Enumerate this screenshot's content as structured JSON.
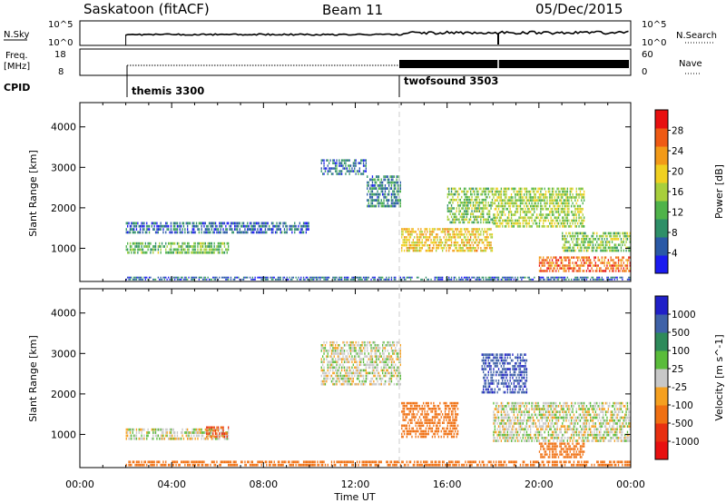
{
  "header": {
    "station": "Saskatoon (fitACF)",
    "beam": "Beam 11",
    "date": "05/Dec/2015"
  },
  "top_panels": {
    "nsky_label": "N.Sky",
    "nsky_ticks": [
      "10^5",
      "10^0"
    ],
    "nsearch_label": "N.Search",
    "nsearch_ticks": [
      "10^5",
      "10^0"
    ],
    "freq_label": "Freq.",
    "freq_unit": "[MHz]",
    "freq_ticks": [
      "18",
      "8"
    ],
    "nave_label": "Nave",
    "nave_ticks": [
      "60",
      "0"
    ],
    "cpid_label": "CPID",
    "cpid_programs": [
      {
        "name": "themis 3300",
        "start_hour": 2.0
      },
      {
        "name": "twofsound 3503",
        "start_hour": 14.0
      }
    ]
  },
  "x_axis": {
    "title": "Time UT",
    "ticks": [
      "00:00",
      "04:00",
      "08:00",
      "12:00",
      "16:00",
      "20:00",
      "00:00"
    ],
    "range_hours": [
      0,
      24
    ]
  },
  "chart_data": [
    {
      "type": "heatmap",
      "panel": "power",
      "ylabel": "Slant Range [km]",
      "y_ticks": [
        "1000",
        "2000",
        "3000",
        "4000"
      ],
      "ylim": [
        180,
        4600
      ],
      "colorbar": {
        "label": "Power [dB]",
        "ticks": [
          "4",
          "8",
          "12",
          "16",
          "20",
          "24",
          "28"
        ],
        "range": [
          0,
          32
        ],
        "colors": [
          "#1b1bf0",
          "#2a59a6",
          "#2e8f68",
          "#4fb34a",
          "#a8cf3c",
          "#f0d020",
          "#f29a18",
          "#ef5a14",
          "#e81010"
        ]
      },
      "regions": [
        {
          "t0": 2.0,
          "t1": 6.5,
          "r0": 850,
          "r1": 1150,
          "value": 13,
          "note": "band"
        },
        {
          "t0": 2.0,
          "t1": 10.0,
          "r0": 1350,
          "r1": 1650,
          "value": 6
        },
        {
          "t0": 2.0,
          "t1": 24.0,
          "r0": 200,
          "r1": 300,
          "value": 6
        },
        {
          "t0": 10.5,
          "t1": 12.5,
          "r0": 2800,
          "r1": 3200,
          "value": 7
        },
        {
          "t0": 12.5,
          "t1": 14.0,
          "r0": 2000,
          "r1": 2800,
          "value": 8
        },
        {
          "t0": 14.0,
          "t1": 18.0,
          "r0": 900,
          "r1": 1500,
          "value": 20
        },
        {
          "t0": 16.0,
          "t1": 18.0,
          "r0": 1600,
          "r1": 2500,
          "value": 14
        },
        {
          "t0": 18.0,
          "t1": 22.0,
          "r0": 1500,
          "r1": 2500,
          "value": 16
        },
        {
          "t0": 20.0,
          "t1": 24.0,
          "r0": 400,
          "r1": 800,
          "value": 26
        },
        {
          "t0": 21.0,
          "t1": 24.0,
          "r0": 900,
          "r1": 1400,
          "value": 14
        }
      ]
    },
    {
      "type": "heatmap",
      "panel": "velocity",
      "ylabel": "Slant Range [km]",
      "y_ticks": [
        "1000",
        "2000",
        "3000",
        "4000"
      ],
      "ylim": [
        180,
        4600
      ],
      "colorbar": {
        "label": "Velocity [m s^-1]",
        "ticks": [
          "1000",
          "500",
          "100",
          "25",
          "-25",
          "-100",
          "-500",
          "-1000"
        ],
        "colors": [
          "#2020c8",
          "#3f62a8",
          "#2e8a5a",
          "#5abc3a",
          "#c8c8c8",
          "#f5a020",
          "#f07012",
          "#e83010",
          "#e81010"
        ]
      },
      "regions": [
        {
          "t0": 2.0,
          "t1": 6.5,
          "r0": 850,
          "r1": 1150,
          "value": 0
        },
        {
          "t0": 2.0,
          "t1": 24.0,
          "r0": 200,
          "r1": 350,
          "value": -150
        },
        {
          "t0": 5.5,
          "t1": 6.5,
          "r0": 900,
          "r1": 1200,
          "value": -300
        },
        {
          "t0": 10.5,
          "t1": 14.0,
          "r0": 2200,
          "r1": 3300,
          "value": 0
        },
        {
          "t0": 14.0,
          "t1": 16.5,
          "r0": 900,
          "r1": 1800,
          "value": -120
        },
        {
          "t0": 17.5,
          "t1": 19.5,
          "r0": 2000,
          "r1": 3000,
          "value": 600
        },
        {
          "t0": 18.0,
          "t1": 24.0,
          "r0": 800,
          "r1": 1800,
          "value": 0
        },
        {
          "t0": 20.0,
          "t1": 22.0,
          "r0": 400,
          "r1": 800,
          "value": -150
        }
      ]
    }
  ]
}
